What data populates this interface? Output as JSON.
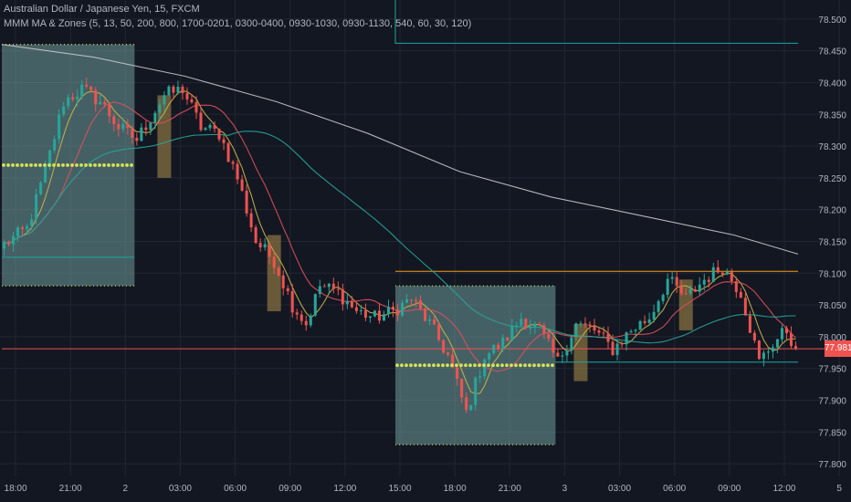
{
  "header": {
    "symbol_line": "Australian Dollar / Japanese Yen, 15, FXCM",
    "indicator_line": "MMM MA & Zones (5, 13, 50, 200, 800, 1700-0201, 0300-0400, 0930-1030, 0930-1130, 540, 60, 30, 120)"
  },
  "last_price_label": "77.981",
  "colors": {
    "background": "#131722",
    "grid": "#232632",
    "up": "#26a69a",
    "down": "#ef5350",
    "ma_fast": "#c8b44a",
    "ma_mid": "#e0505a",
    "ma_slow": "#26a69a",
    "ma_long": "#c4c4c8",
    "zone_box": "#6f9d9b",
    "small_zone": "#a2864a",
    "dots": "#d4e157",
    "orange_line": "#f39c12",
    "teal_line": "#1aa8a0",
    "price_line": "#ef5350",
    "axis_text": "#b2b5be"
  },
  "chart_data": {
    "type": "candlestick",
    "title": "Australian Dollar / Japanese Yen, 15, FXCM",
    "ylim": [
      77.78,
      78.53
    ],
    "y_ticks": [
      "78.500",
      "78.450",
      "78.400",
      "78.350",
      "78.300",
      "78.250",
      "78.200",
      "78.150",
      "78.100",
      "78.050",
      "78.000",
      "77.950",
      "77.900",
      "77.850",
      "77.800"
    ],
    "x_ticks": [
      "18:00",
      "21:00",
      "2",
      "03:00",
      "06:00",
      "09:00",
      "12:00",
      "15:00",
      "18:00",
      "21:00",
      "3",
      "03:00",
      "06:00",
      "09:00",
      "12:00",
      "5"
    ],
    "bar_count": 174,
    "last_price": 77.981,
    "anchors": [
      [
        0,
        78.14
      ],
      [
        6,
        78.17
      ],
      [
        10,
        78.26
      ],
      [
        14,
        78.37
      ],
      [
        18,
        78.39
      ],
      [
        22,
        78.37
      ],
      [
        26,
        78.33
      ],
      [
        30,
        78.31
      ],
      [
        36,
        78.38
      ],
      [
        40,
        78.39
      ],
      [
        44,
        78.33
      ],
      [
        48,
        78.32
      ],
      [
        52,
        78.25
      ],
      [
        56,
        78.15
      ],
      [
        60,
        78.12
      ],
      [
        64,
        78.05
      ],
      [
        67,
        78.02
      ],
      [
        70,
        78.08
      ],
      [
        74,
        78.07
      ],
      [
        78,
        78.04
      ],
      [
        82,
        78.03
      ],
      [
        86,
        78.04
      ],
      [
        90,
        78.06
      ],
      [
        94,
        78.02
      ],
      [
        98,
        77.97
      ],
      [
        102,
        77.88
      ],
      [
        106,
        77.97
      ],
      [
        110,
        77.99
      ],
      [
        114,
        78.03
      ],
      [
        118,
        78.01
      ],
      [
        122,
        77.96
      ],
      [
        126,
        78.02
      ],
      [
        130,
        78.01
      ],
      [
        134,
        77.98
      ],
      [
        138,
        78.01
      ],
      [
        142,
        78.03
      ],
      [
        146,
        78.09
      ],
      [
        150,
        78.06
      ],
      [
        154,
        78.09
      ],
      [
        158,
        78.11
      ],
      [
        162,
        78.07
      ],
      [
        166,
        77.96
      ],
      [
        169,
        77.99
      ],
      [
        172,
        78.01
      ],
      [
        174,
        77.98
      ]
    ],
    "moving_averages": [
      {
        "period": 5,
        "color": "ma_fast"
      },
      {
        "period": 13,
        "color": "ma_mid"
      },
      {
        "period": 50,
        "color": "ma_slow"
      },
      {
        "period": 200,
        "color": "ma_long",
        "points": [
          [
            0,
            78.46
          ],
          [
            20,
            78.44
          ],
          [
            40,
            78.41
          ],
          [
            60,
            78.37
          ],
          [
            80,
            78.32
          ],
          [
            100,
            78.26
          ],
          [
            120,
            78.22
          ],
          [
            140,
            78.19
          ],
          [
            160,
            78.16
          ],
          [
            174,
            78.13
          ]
        ]
      }
    ],
    "zones": [
      {
        "x0": 0,
        "x1": 29,
        "y0": 78.08,
        "y1": 78.46,
        "style": "zone_box"
      },
      {
        "x0": 34,
        "x1": 37,
        "y0": 78.25,
        "y1": 78.38,
        "style": "small_zone"
      },
      {
        "x0": 58,
        "x1": 61,
        "y0": 78.04,
        "y1": 78.16,
        "style": "small_zone"
      },
      {
        "x0": 86,
        "x1": 121,
        "y0": 77.83,
        "y1": 78.08,
        "style": "zone_box"
      },
      {
        "x0": 125,
        "x1": 128,
        "y0": 77.93,
        "y1": 78.02,
        "style": "small_zone"
      },
      {
        "x0": 148,
        "x1": 151,
        "y0": 78.01,
        "y1": 78.09,
        "style": "small_zone"
      }
    ],
    "dot_levels": [
      {
        "x0": 0,
        "x1": 29,
        "y": 78.27
      },
      {
        "x0": 86,
        "x1": 121,
        "y": 77.955
      }
    ],
    "h_lines": [
      {
        "x0": 0,
        "x1": 29,
        "y": 78.125,
        "color": "teal_line"
      },
      {
        "x0": 86,
        "x1": 174,
        "y": 78.103,
        "color": "orange_line"
      },
      {
        "x0": 121,
        "x1": 174,
        "y": 77.96,
        "color": "teal_line"
      },
      {
        "x0": 0,
        "x1": 174,
        "y": 77.981,
        "color": "price_line"
      }
    ],
    "bracket": {
      "x0": 86,
      "x1": 174,
      "y_top": 78.53,
      "y": 78.462
    }
  }
}
